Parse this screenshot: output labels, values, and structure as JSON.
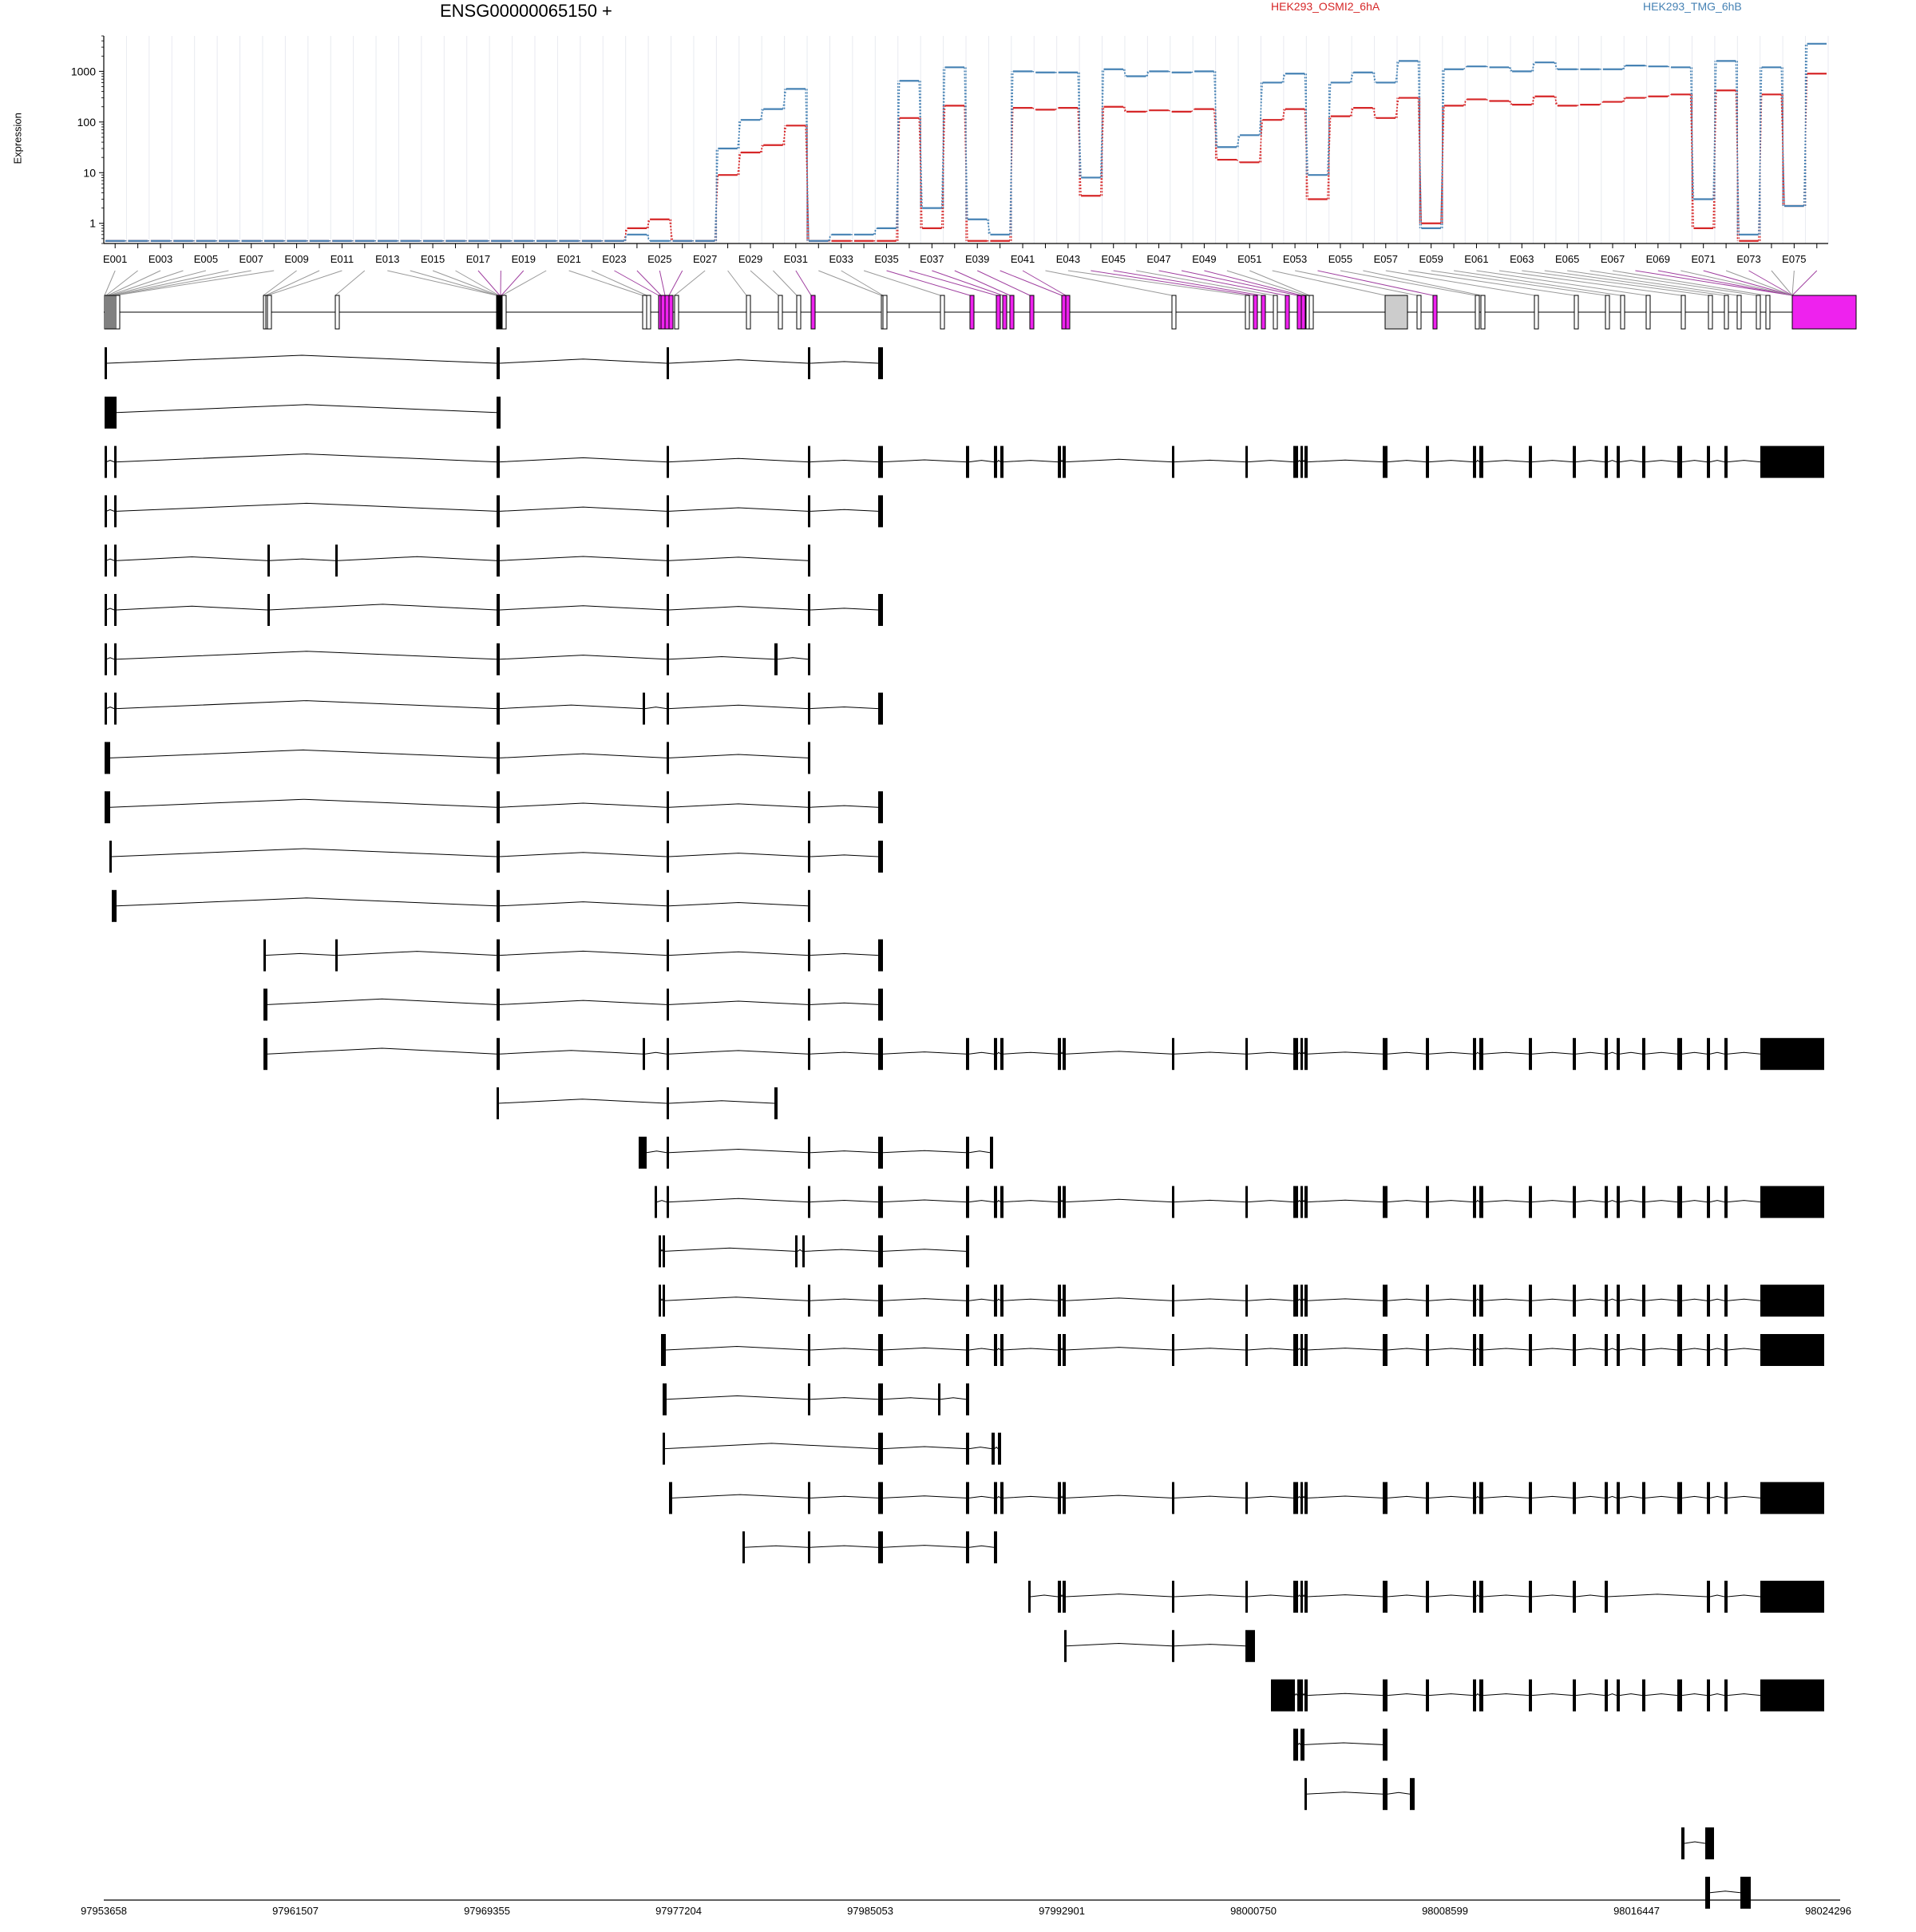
{
  "header": {
    "gene_label": "ENSG00000065150 +",
    "y_axis_label": "Expression"
  },
  "colors": {
    "HEK293_OSMI2_6hA": "#d62728",
    "HEK293_TMG_6hB": "#4682b4",
    "exon_significant": "#ee22ee",
    "exon_plain": "#ffffff",
    "exon_grey": "#cccccc",
    "genomic_connector": "#999999",
    "significant_connector": "#a040a0"
  },
  "chart_data": {
    "type": "line",
    "scale": "log",
    "y_ticks": [
      1,
      10,
      100,
      1000
    ],
    "y_tick_labels": [
      "1",
      "10",
      "100",
      "1000"
    ],
    "ylim": [
      0.4,
      5000
    ],
    "series": [
      {
        "name": "HEK293_OSMI2_6hA",
        "values": [
          0.45,
          0.45,
          0.45,
          0.45,
          0.45,
          0.45,
          0.45,
          0.45,
          0.45,
          0.45,
          0.45,
          0.45,
          0.45,
          0.45,
          0.45,
          0.45,
          0.45,
          0.45,
          0.45,
          0.45,
          0.45,
          0.45,
          0.45,
          0.8,
          1.2,
          0.45,
          0.45,
          9,
          25,
          35,
          85,
          0.45,
          0.45,
          0.45,
          0.45,
          120,
          0.8,
          210,
          0.45,
          0.45,
          190,
          175,
          190,
          3.5,
          200,
          160,
          170,
          160,
          180,
          18,
          16,
          110,
          180,
          3,
          130,
          190,
          120,
          300,
          1,
          210,
          280,
          260,
          220,
          320,
          210,
          220,
          250,
          300,
          320,
          350,
          0.8,
          420,
          0.45,
          350,
          2.2,
          900
        ]
      },
      {
        "name": "HEK293_TMG_6hB",
        "values": [
          0.45,
          0.45,
          0.45,
          0.45,
          0.45,
          0.45,
          0.45,
          0.45,
          0.45,
          0.45,
          0.45,
          0.45,
          0.45,
          0.45,
          0.45,
          0.45,
          0.45,
          0.45,
          0.45,
          0.45,
          0.45,
          0.45,
          0.45,
          0.6,
          0.45,
          0.45,
          0.45,
          30,
          110,
          180,
          450,
          0.45,
          0.6,
          0.6,
          0.8,
          650,
          2,
          1200,
          1.2,
          0.6,
          1000,
          950,
          950,
          8,
          1100,
          800,
          1000,
          950,
          1000,
          32,
          55,
          600,
          900,
          9,
          600,
          950,
          600,
          1600,
          0.8,
          1100,
          1250,
          1200,
          1000,
          1500,
          1100,
          1100,
          1100,
          1300,
          1250,
          1200,
          3,
          1600,
          0.6,
          1200,
          2.2,
          3500
        ]
      }
    ],
    "x_tick_labels": [
      "97953658",
      "97961507",
      "97969355",
      "97977204",
      "97985053",
      "97992901",
      "98000750",
      "98008599",
      "98016447",
      "98024296"
    ],
    "exon_labels": [
      "E001",
      "E003",
      "E005",
      "E007",
      "E009",
      "E011",
      "E013",
      "E015",
      "E017",
      "E019",
      "E021",
      "E023",
      "E025",
      "E027",
      "E029",
      "E031",
      "E033",
      "E035",
      "E037",
      "E039",
      "E041",
      "E043",
      "E045",
      "E047",
      "E049",
      "E051",
      "E053",
      "E055",
      "E057",
      "E059",
      "E061",
      "E063",
      "E065",
      "E067",
      "E069",
      "E071",
      "E073",
      "E075"
    ]
  }
}
